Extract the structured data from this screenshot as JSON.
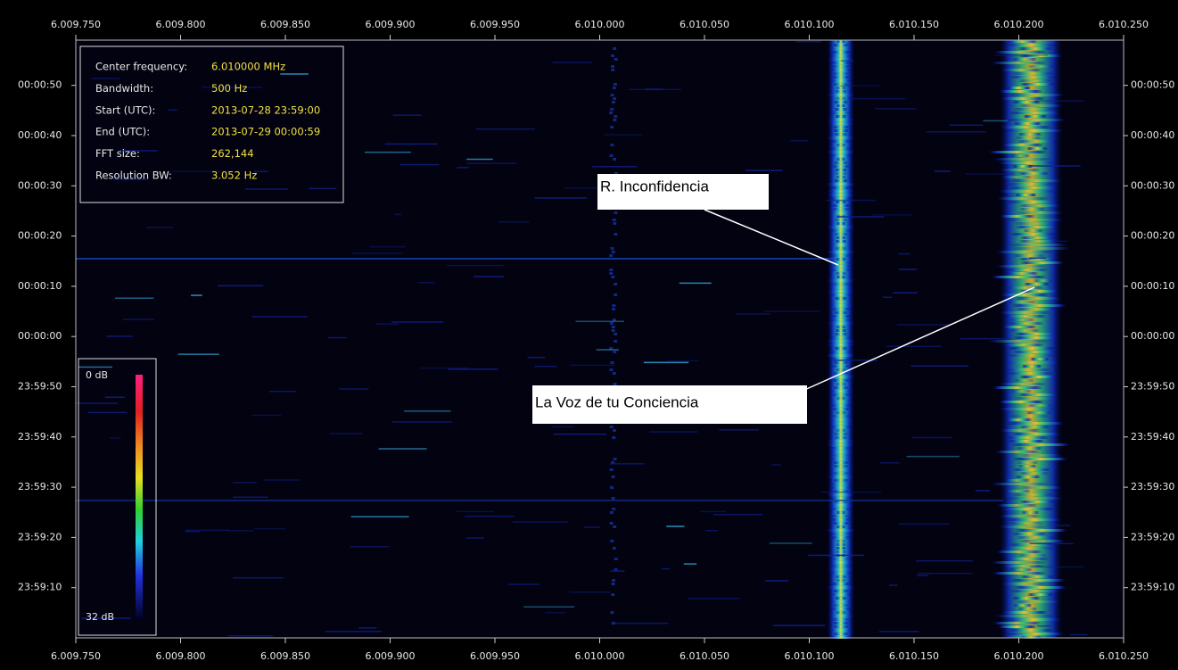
{
  "chart_data": {
    "type": "spectrogram",
    "xlim": [
      6009.75,
      6010.25
    ],
    "xticks": [
      {
        "value": 6009.75,
        "label": "6.009.750"
      },
      {
        "value": 6009.8,
        "label": "6.009.800"
      },
      {
        "value": 6009.85,
        "label": "6.009.850"
      },
      {
        "value": 6009.9,
        "label": "6.009.900"
      },
      {
        "value": 6009.95,
        "label": "6.009.950"
      },
      {
        "value": 6010.0,
        "label": "6.010.000"
      },
      {
        "value": 6010.05,
        "label": "6.010.050"
      },
      {
        "value": 6010.1,
        "label": "6.010.100"
      },
      {
        "value": 6010.15,
        "label": "6.010.150"
      },
      {
        "value": 6010.2,
        "label": "6.010.200"
      },
      {
        "value": 6010.25,
        "label": "6.010.250"
      }
    ],
    "ylim": [
      -60,
      59
    ],
    "yticks": [
      {
        "value": 50,
        "label": "00:00:50"
      },
      {
        "value": 40,
        "label": "00:00:40"
      },
      {
        "value": 30,
        "label": "00:00:30"
      },
      {
        "value": 20,
        "label": "00:00:20"
      },
      {
        "value": 10,
        "label": "00:00:10"
      },
      {
        "value": 0,
        "label": "00:00:00"
      },
      {
        "value": -10,
        "label": "23:59:50"
      },
      {
        "value": -20,
        "label": "23:59:40"
      },
      {
        "value": -30,
        "label": "23:59:30"
      },
      {
        "value": -40,
        "label": "23:59:20"
      },
      {
        "value": -50,
        "label": "23:59:10"
      }
    ],
    "info": [
      {
        "label": "Center frequency:",
        "value": "6.010000 MHz"
      },
      {
        "label": "Bandwidth:",
        "value": "500 Hz"
      },
      {
        "label": "Start (UTC):",
        "value": "2013-07-28 23:59:00"
      },
      {
        "label": "End (UTC):",
        "value": "2013-07-29 00:00:59"
      },
      {
        "label": "FFT size:",
        "value": "262,144"
      },
      {
        "label": "Resolution BW:",
        "value": "3.052 Hz"
      }
    ],
    "colorbar_labels": [
      "0 dB",
      "32 dB"
    ],
    "annotations": [
      "R. Inconfidencia",
      "La Voz de tu Conciencia"
    ]
  }
}
